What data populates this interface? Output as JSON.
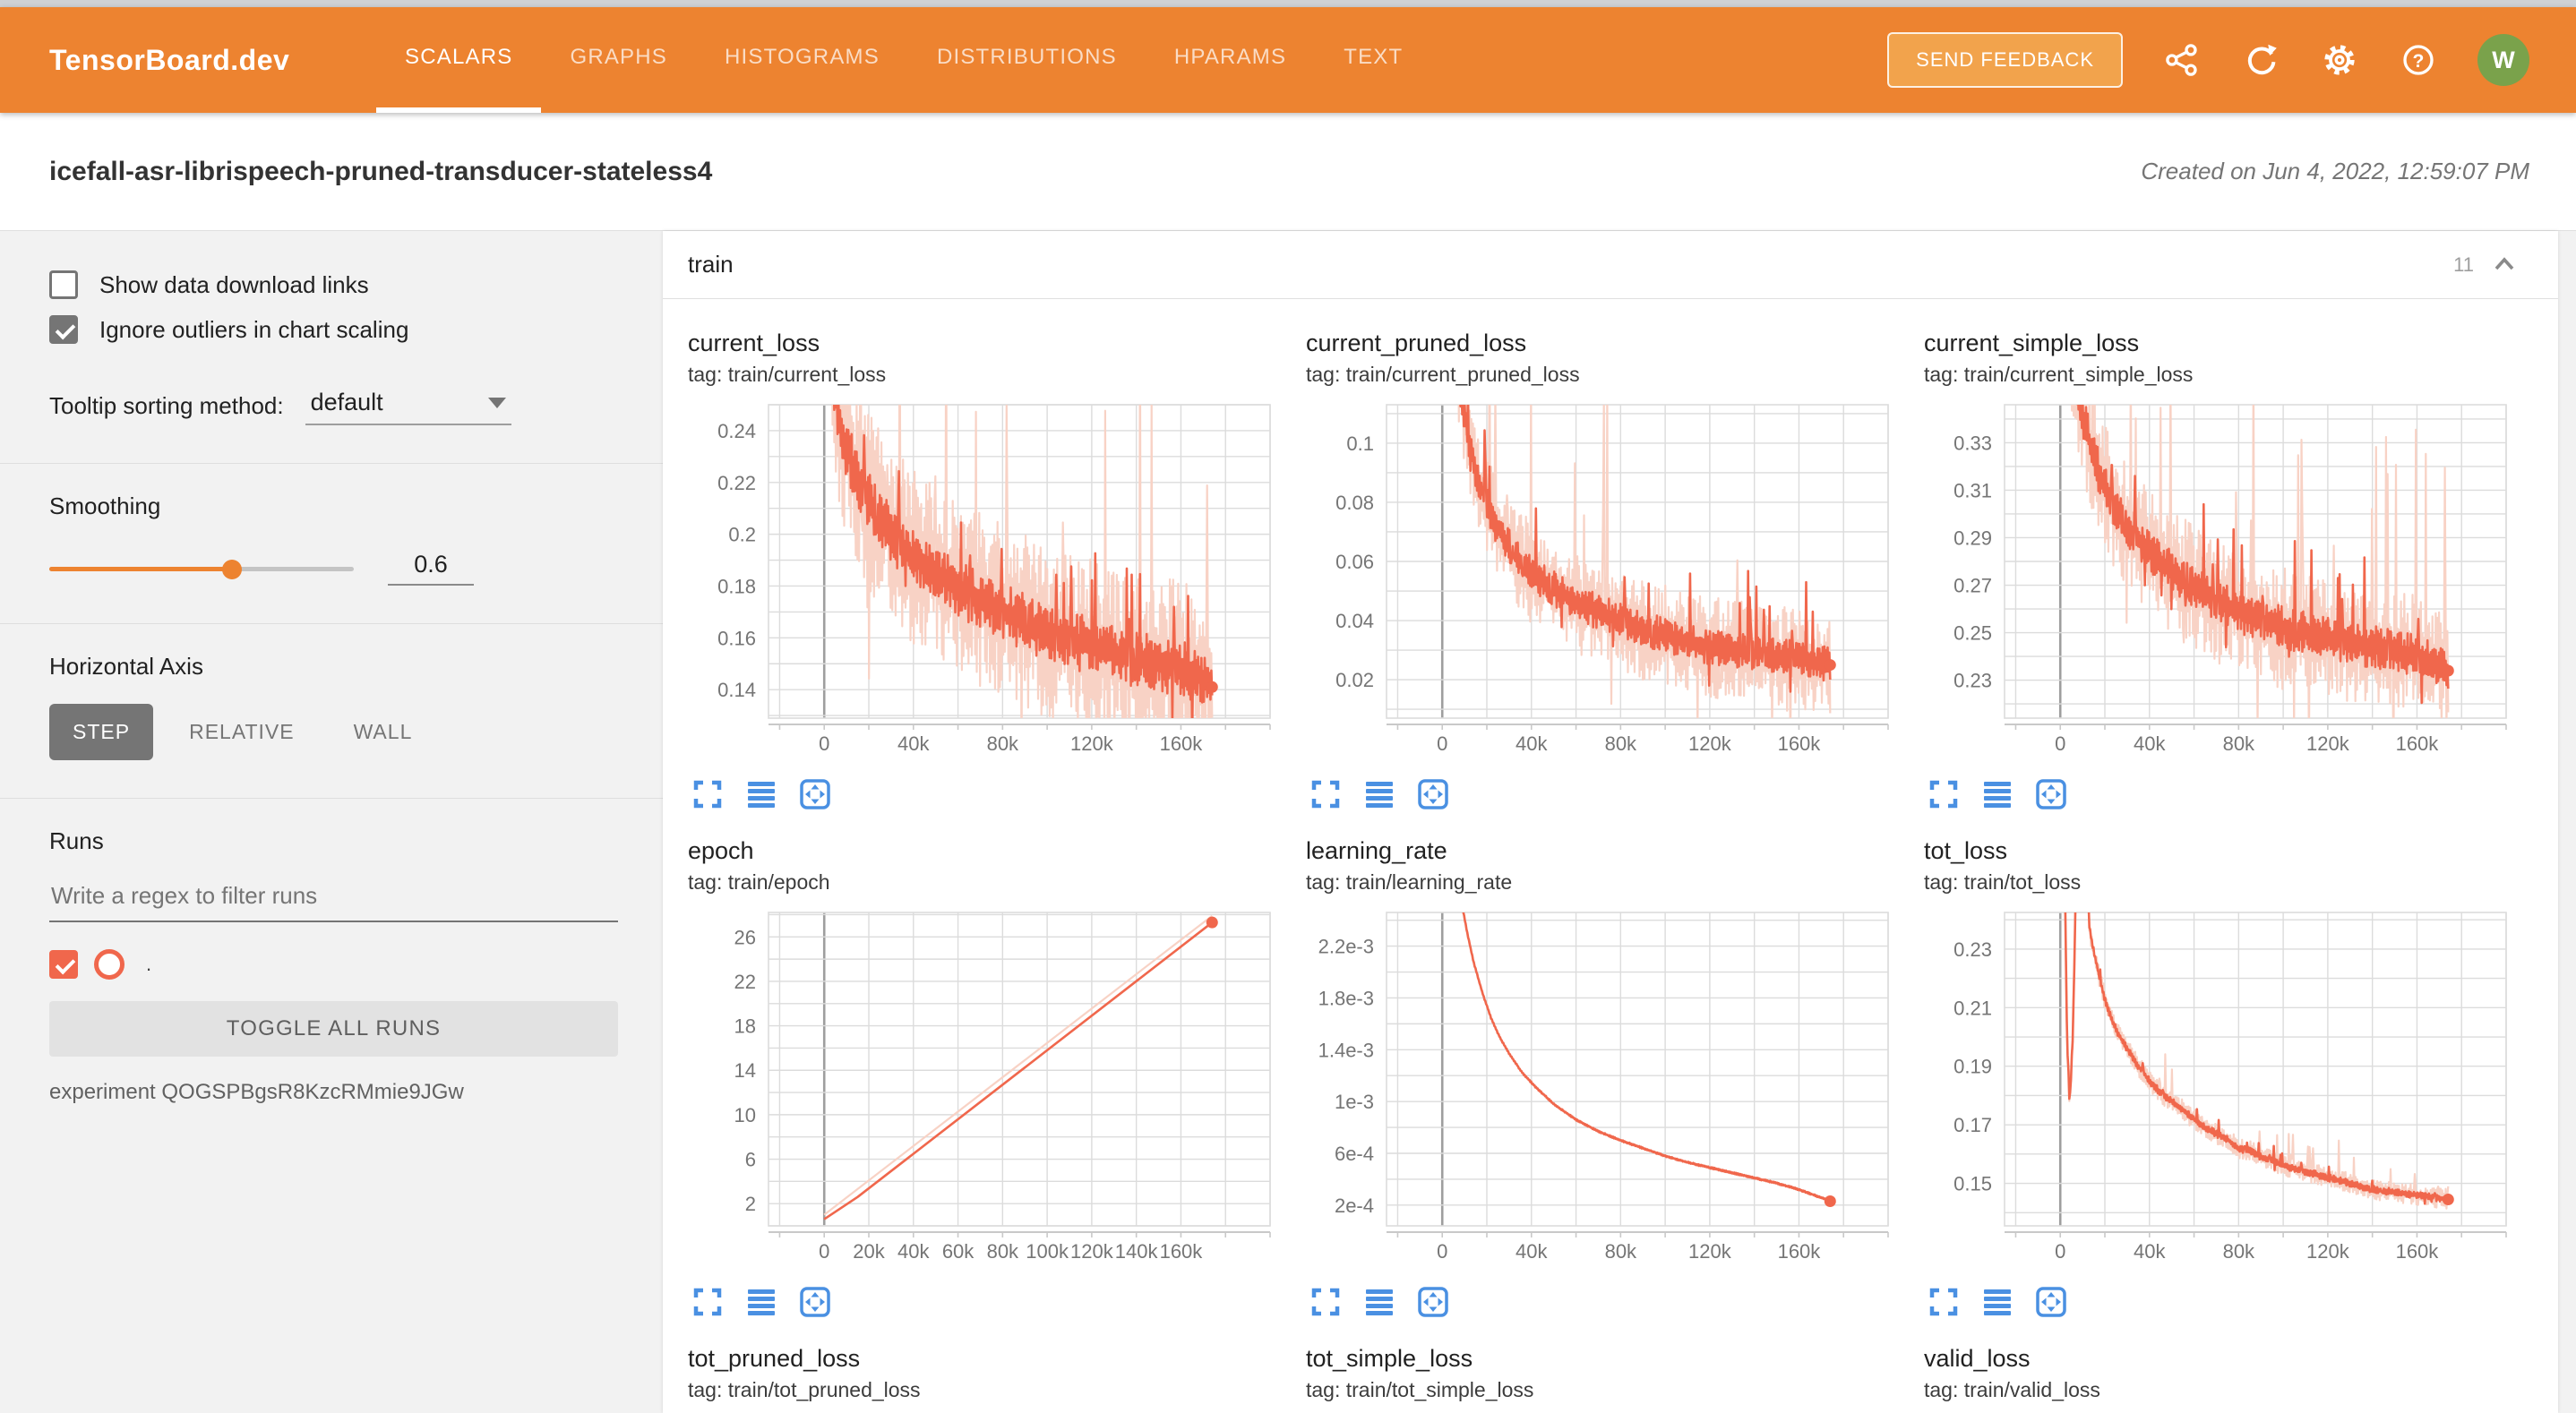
{
  "colors": {
    "header_orange": "#ed8330",
    "feedback_orange": "#f2a34c",
    "run": "#f0674c",
    "run_light": "#f8d2c5",
    "icon_blue": "#4a90e2",
    "avatar_green": "#7aa24b",
    "grid": "#dcdcdc",
    "axis_text": "#757575"
  },
  "header": {
    "logo": "TensorBoard.dev",
    "tabs": [
      {
        "label": "SCALARS",
        "active": true
      },
      {
        "label": "GRAPHS",
        "active": false
      },
      {
        "label": "HISTOGRAMS",
        "active": false
      },
      {
        "label": "DISTRIBUTIONS",
        "active": false
      },
      {
        "label": "HPARAMS",
        "active": false
      },
      {
        "label": "TEXT",
        "active": false
      }
    ],
    "feedback_button": "SEND FEEDBACK",
    "icons": [
      "share-icon",
      "refresh-icon",
      "settings-icon",
      "help-icon"
    ],
    "avatar_initial": "W"
  },
  "title_bar": {
    "experiment_title": "icefall-asr-librispeech-pruned-transducer-stateless4",
    "created_label": "Created on Jun 4, 2022, 12:59:07 PM"
  },
  "sidebar": {
    "show_download_links": {
      "label": "Show data download links",
      "checked": false
    },
    "ignore_outliers": {
      "label": "Ignore outliers in chart scaling",
      "checked": true
    },
    "tooltip_sorting": {
      "label": "Tooltip sorting method:",
      "value": "default"
    },
    "smoothing": {
      "label": "Smoothing",
      "value": "0.6"
    },
    "horizontal_axis": {
      "label": "Horizontal Axis",
      "options": [
        "STEP",
        "RELATIVE",
        "WALL"
      ],
      "active": "STEP"
    },
    "runs": {
      "label": "Runs",
      "filter_placeholder": "Write a regex to filter runs",
      "run_item": {
        "name": ".",
        "checked": true
      },
      "toggle_all_label": "TOGGLE ALL RUNS",
      "experiment_note": "experiment QOGSPBgsR8KzcRMmie9JGw"
    }
  },
  "main": {
    "group_label": "train",
    "chart_count": "11"
  },
  "chart_data": [
    {
      "type": "line",
      "title": "current_loss",
      "tag": "tag: train/current_loss",
      "xlim": [
        -25000,
        200000
      ],
      "ylim": [
        0.129,
        0.25
      ],
      "x_grid_step": 20000,
      "y_grid_step": 0.01,
      "x_ticks": {
        "values": [
          0,
          40000,
          80000,
          120000,
          160000
        ],
        "labels": [
          "0",
          "40k",
          "80k",
          "120k",
          "160k"
        ]
      },
      "y_ticks": {
        "values": [
          0.14,
          0.16,
          0.18,
          0.2,
          0.22,
          0.24
        ],
        "labels": [
          "0.14",
          "0.16",
          "0.18",
          "0.2",
          "0.22",
          "0.24"
        ]
      },
      "trend_points": [
        [
          3000,
          0.27
        ],
        [
          6000,
          0.246
        ],
        [
          10000,
          0.233
        ],
        [
          15000,
          0.222
        ],
        [
          20000,
          0.213
        ],
        [
          25000,
          0.206
        ],
        [
          30000,
          0.2
        ],
        [
          40000,
          0.191
        ],
        [
          50000,
          0.185
        ],
        [
          60000,
          0.179
        ],
        [
          70000,
          0.174
        ],
        [
          80000,
          0.17
        ],
        [
          90000,
          0.166
        ],
        [
          100000,
          0.162
        ],
        [
          110000,
          0.159
        ],
        [
          120000,
          0.157
        ],
        [
          130000,
          0.154
        ],
        [
          140000,
          0.152
        ],
        [
          150000,
          0.15
        ],
        [
          160000,
          0.148
        ],
        [
          168000,
          0.146
        ],
        [
          174000,
          0.141
        ]
      ],
      "series": [
        {
          "name": "train (raw)",
          "role": "raw",
          "noise": 0.034,
          "spikes": true
        },
        {
          "name": "train (smoothed 0.6)",
          "role": "smoothed",
          "noise": 0.011,
          "spikes": true,
          "end_dot": true
        }
      ]
    },
    {
      "type": "line",
      "title": "current_pruned_loss",
      "tag": "tag: train/current_pruned_loss",
      "xlim": [
        -25000,
        200000
      ],
      "ylim": [
        0.007,
        0.113
      ],
      "x_grid_step": 20000,
      "y_grid_step": 0.01,
      "x_ticks": {
        "values": [
          0,
          40000,
          80000,
          120000,
          160000
        ],
        "labels": [
          "0",
          "40k",
          "80k",
          "120k",
          "160k"
        ]
      },
      "y_ticks": {
        "values": [
          0.02,
          0.04,
          0.06,
          0.08,
          0.1
        ],
        "labels": [
          "0.02",
          "0.04",
          "0.06",
          "0.08",
          "0.1"
        ]
      },
      "trend_points": [
        [
          3000,
          0.16
        ],
        [
          6000,
          0.132
        ],
        [
          9000,
          0.113
        ],
        [
          12000,
          0.101
        ],
        [
          15000,
          0.091
        ],
        [
          20000,
          0.079
        ],
        [
          25000,
          0.071
        ],
        [
          30000,
          0.065
        ],
        [
          40000,
          0.056
        ],
        [
          50000,
          0.051
        ],
        [
          60000,
          0.046
        ],
        [
          70000,
          0.043
        ],
        [
          80000,
          0.04
        ],
        [
          90000,
          0.037
        ],
        [
          100000,
          0.035
        ],
        [
          110000,
          0.033
        ],
        [
          120000,
          0.031
        ],
        [
          130000,
          0.03
        ],
        [
          140000,
          0.029
        ],
        [
          150000,
          0.028
        ],
        [
          160000,
          0.027
        ],
        [
          174000,
          0.025
        ]
      ],
      "series": [
        {
          "name": "train (raw)",
          "role": "raw",
          "noise": 0.017,
          "spikes": true
        },
        {
          "name": "train (smoothed 0.6)",
          "role": "smoothed",
          "noise": 0.006,
          "spikes": true,
          "end_dot": true
        }
      ]
    },
    {
      "type": "line",
      "title": "current_simple_loss",
      "tag": "tag: train/current_simple_loss",
      "xlim": [
        -25000,
        200000
      ],
      "ylim": [
        0.214,
        0.346
      ],
      "x_grid_step": 20000,
      "y_grid_step": 0.01,
      "x_ticks": {
        "values": [
          0,
          40000,
          80000,
          120000,
          160000
        ],
        "labels": [
          "0",
          "40k",
          "80k",
          "120k",
          "160k"
        ]
      },
      "y_ticks": {
        "values": [
          0.23,
          0.25,
          0.27,
          0.29,
          0.31,
          0.33
        ],
        "labels": [
          "0.23",
          "0.25",
          "0.27",
          "0.29",
          "0.31",
          "0.33"
        ]
      },
      "trend_points": [
        [
          3000,
          0.385
        ],
        [
          6000,
          0.362
        ],
        [
          10000,
          0.342
        ],
        [
          14000,
          0.327
        ],
        [
          18000,
          0.316
        ],
        [
          22000,
          0.307
        ],
        [
          26000,
          0.3
        ],
        [
          30000,
          0.295
        ],
        [
          40000,
          0.284
        ],
        [
          50000,
          0.276
        ],
        [
          60000,
          0.269
        ],
        [
          70000,
          0.263
        ],
        [
          80000,
          0.259
        ],
        [
          90000,
          0.255
        ],
        [
          100000,
          0.252
        ],
        [
          110000,
          0.25
        ],
        [
          120000,
          0.248
        ],
        [
          130000,
          0.246
        ],
        [
          140000,
          0.244
        ],
        [
          150000,
          0.242
        ],
        [
          160000,
          0.24
        ],
        [
          174000,
          0.234
        ]
      ],
      "series": [
        {
          "name": "train (raw)",
          "role": "raw",
          "noise": 0.026,
          "spikes": true
        },
        {
          "name": "train (smoothed 0.6)",
          "role": "smoothed",
          "noise": 0.009,
          "spikes": true,
          "end_dot": true
        }
      ]
    },
    {
      "type": "line",
      "title": "epoch",
      "tag": "tag: train/epoch",
      "xlim": [
        -25000,
        200000
      ],
      "ylim": [
        0,
        28.2
      ],
      "x_grid_step": 20000,
      "y_grid_step": 2,
      "x_ticks": {
        "values": [
          0,
          20000,
          40000,
          60000,
          80000,
          100000,
          120000,
          140000,
          160000
        ],
        "labels": [
          "0",
          "20k",
          "40k",
          "60k",
          "80k",
          "100k",
          "120k",
          "140k",
          "160k"
        ]
      },
      "y_ticks": {
        "values": [
          2,
          6,
          10,
          14,
          18,
          22,
          26
        ],
        "labels": [
          "2",
          "6",
          "10",
          "14",
          "18",
          "22",
          "26"
        ]
      },
      "trend_points": [
        [
          0,
          0.6
        ],
        [
          15000,
          2.6
        ],
        [
          174000,
          27.3
        ]
      ],
      "series": [
        {
          "name": "train (raw)",
          "role": "raw",
          "noise": 0,
          "points": [
            [
              0,
              1.0
            ],
            [
              174000,
              27.9
            ]
          ]
        },
        {
          "name": "train (smoothed 0.6)",
          "role": "smoothed",
          "noise": 0,
          "end_dot": true
        }
      ]
    },
    {
      "type": "line",
      "title": "learning_rate",
      "tag": "tag: train/learning_rate",
      "xlim": [
        -25000,
        200000
      ],
      "ylim": [
        4e-05,
        0.00246
      ],
      "x_grid_step": 20000,
      "y_grid_step": 0.0002,
      "x_ticks": {
        "values": [
          0,
          40000,
          80000,
          120000,
          160000
        ],
        "labels": [
          "0",
          "40k",
          "80k",
          "120k",
          "160k"
        ]
      },
      "y_ticks": {
        "values": [
          0.0002,
          0.0006,
          0.001,
          0.0014,
          0.0018,
          0.0022
        ],
        "labels": [
          "2e-4",
          "6e-4",
          "1e-3",
          "1.4e-3",
          "1.8e-3",
          "2.2e-3"
        ]
      },
      "trend_points": [
        [
          5000,
          0.0031
        ],
        [
          8000,
          0.0026
        ],
        [
          11000,
          0.00232
        ],
        [
          14000,
          0.00208
        ],
        [
          18000,
          0.00184
        ],
        [
          22000,
          0.00164
        ],
        [
          26000,
          0.00149
        ],
        [
          30000,
          0.00137
        ],
        [
          36000,
          0.00122
        ],
        [
          42000,
          0.00111
        ],
        [
          50000,
          0.00098
        ],
        [
          60000,
          0.00086
        ],
        [
          70000,
          0.00077
        ],
        [
          80000,
          0.0007
        ],
        [
          90000,
          0.00064
        ],
        [
          100000,
          0.00058
        ],
        [
          110000,
          0.00053
        ],
        [
          120000,
          0.00049
        ],
        [
          130000,
          0.00045
        ],
        [
          140000,
          0.00041
        ],
        [
          150000,
          0.00037
        ],
        [
          160000,
          0.00032
        ],
        [
          168000,
          0.00027
        ],
        [
          174000,
          0.00023
        ]
      ],
      "series": [
        {
          "name": "train (raw)",
          "role": "raw",
          "noise": 0
        },
        {
          "name": "train (smoothed 0.6)",
          "role": "smoothed",
          "noise": 6e-06,
          "end_dot": true
        }
      ]
    },
    {
      "type": "line",
      "title": "tot_loss",
      "tag": "tag: train/tot_loss",
      "xlim": [
        -25000,
        200000
      ],
      "ylim": [
        0.1355,
        0.2425
      ],
      "x_grid_step": 20000,
      "y_grid_step": 0.01,
      "x_ticks": {
        "values": [
          0,
          40000,
          80000,
          120000,
          160000
        ],
        "labels": [
          "0",
          "40k",
          "80k",
          "120k",
          "160k"
        ]
      },
      "y_ticks": {
        "values": [
          0.15,
          0.17,
          0.19,
          0.21,
          0.23
        ],
        "labels": [
          "0.15",
          "0.17",
          "0.19",
          "0.21",
          "0.23"
        ]
      },
      "trend_points": [
        [
          1800,
          0.27
        ],
        [
          3000,
          0.2
        ],
        [
          4200,
          0.177
        ],
        [
          5600,
          0.2
        ],
        [
          7000,
          0.25
        ],
        [
          8500,
          0.3
        ],
        [
          11500,
          0.27
        ],
        [
          13000,
          0.238
        ],
        [
          15000,
          0.229
        ],
        [
          18000,
          0.219
        ],
        [
          20000,
          0.213
        ],
        [
          23000,
          0.206
        ],
        [
          26000,
          0.201
        ],
        [
          30000,
          0.196
        ],
        [
          35000,
          0.19
        ],
        [
          40000,
          0.185
        ],
        [
          45000,
          0.181
        ],
        [
          50000,
          0.178
        ],
        [
          55000,
          0.175
        ],
        [
          60000,
          0.172
        ],
        [
          65000,
          0.169
        ],
        [
          70000,
          0.167
        ],
        [
          75000,
          0.165
        ],
        [
          80000,
          0.162
        ],
        [
          85000,
          0.161
        ],
        [
          90000,
          0.159
        ],
        [
          95000,
          0.158
        ],
        [
          100000,
          0.156
        ],
        [
          110000,
          0.154
        ],
        [
          120000,
          0.152
        ],
        [
          130000,
          0.15
        ],
        [
          140000,
          0.148
        ],
        [
          150000,
          0.147
        ],
        [
          160000,
          0.146
        ],
        [
          174000,
          0.1445
        ]
      ],
      "series": [
        {
          "name": "train (raw)",
          "role": "raw",
          "noise": 0.0035,
          "spikes": true
        },
        {
          "name": "train (smoothed 0.6)",
          "role": "smoothed",
          "noise": 0.0012,
          "spikes": true,
          "end_dot": true
        }
      ]
    },
    {
      "type": "line",
      "title": "tot_pruned_loss",
      "tag": "tag: train/tot_pruned_loss",
      "partial": true
    },
    {
      "type": "line",
      "title": "tot_simple_loss",
      "tag": "tag: train/tot_simple_loss",
      "partial": true
    },
    {
      "type": "line",
      "title": "valid_loss",
      "tag": "tag: train/valid_loss",
      "partial": true
    }
  ]
}
